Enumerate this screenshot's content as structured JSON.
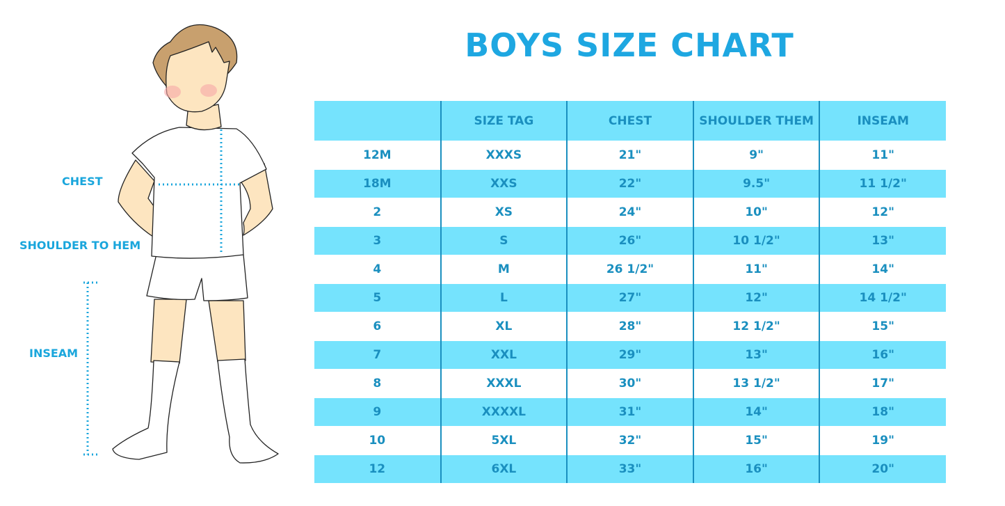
{
  "title": "BOYS SIZE CHART",
  "figure_labels": {
    "chest": "CHEST",
    "shoulder_to_hem": "SHOULDER TO HEM",
    "inseam": "INSEAM"
  },
  "colors": {
    "accent": "#1ea7e1",
    "row_fill": "#75e3fd",
    "text": "#1a8fbf"
  },
  "table": {
    "headers": [
      "",
      "SIZE TAG",
      "CHEST",
      "SHOULDER THEM",
      "INSEAM"
    ],
    "rows": [
      [
        "12M",
        "XXXS",
        "21\"",
        "9\"",
        "11\""
      ],
      [
        "18M",
        "XXS",
        "22\"",
        "9.5\"",
        "11 1/2\""
      ],
      [
        "2",
        "XS",
        "24\"",
        "10\"",
        "12\""
      ],
      [
        "3",
        "S",
        "26\"",
        "10 1/2\"",
        "13\""
      ],
      [
        "4",
        "M",
        "26 1/2\"",
        "11\"",
        "14\""
      ],
      [
        "5",
        "L",
        "27\"",
        "12\"",
        "14 1/2\""
      ],
      [
        "6",
        "XL",
        "28\"",
        "12 1/2\"",
        "15\""
      ],
      [
        "7",
        "XXL",
        "29\"",
        "13\"",
        "16\""
      ],
      [
        "8",
        "XXXL",
        "30\"",
        "13 1/2\"",
        "17\""
      ],
      [
        "9",
        "XXXXL",
        "31\"",
        "14\"",
        "18\""
      ],
      [
        "10",
        "5XL",
        "32\"",
        "15\"",
        "19\""
      ],
      [
        "12",
        "6XL",
        "33\"",
        "16\"",
        "20\""
      ]
    ]
  }
}
